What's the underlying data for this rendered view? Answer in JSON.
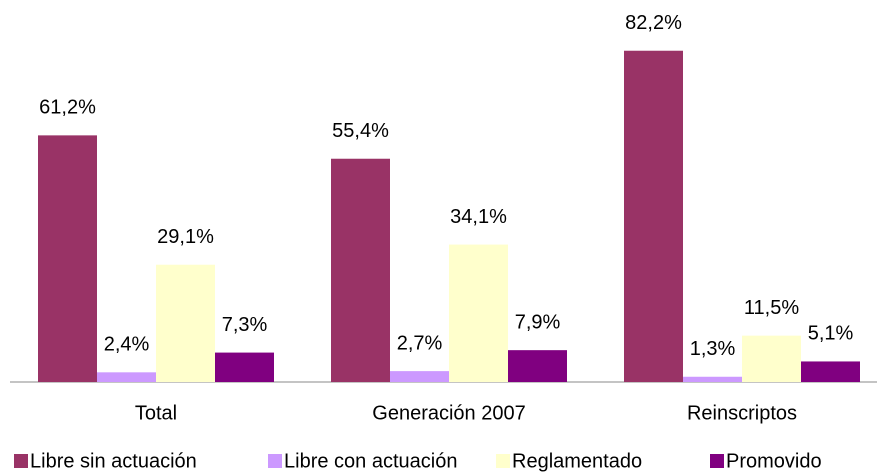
{
  "chart_data": {
    "type": "bar",
    "categories": [
      "Total",
      "Generación 2007",
      "Reinscriptos"
    ],
    "series": [
      {
        "name": "Libre sin actuación",
        "color": "#993366",
        "values": [
          61.2,
          55.4,
          82.2
        ],
        "value_labels": [
          "61,2%",
          "55,4%",
          "82,2%"
        ]
      },
      {
        "name": "Libre con actuación",
        "color": "#cc99ff",
        "values": [
          2.4,
          2.7,
          1.3
        ],
        "value_labels": [
          "2,4%",
          "2,7%",
          "1,3%"
        ]
      },
      {
        "name": "Reglamentado",
        "color": "#ffffcc",
        "values": [
          29.1,
          34.1,
          11.5
        ],
        "value_labels": [
          "29,1%",
          "34,1%",
          "11,5%"
        ]
      },
      {
        "name": "Promovido",
        "color": "#800080",
        "values": [
          7.3,
          7.9,
          5.1
        ],
        "value_labels": [
          "7,3%",
          "7,9%",
          "5,1%"
        ]
      }
    ],
    "legend": "bottom"
  }
}
